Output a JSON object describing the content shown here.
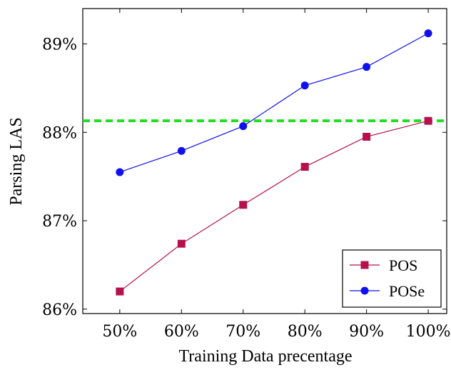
{
  "chart_data": {
    "type": "line",
    "xlabel": "Training Data precentage",
    "ylabel": "Parsing LAS",
    "x": [
      50,
      60,
      70,
      80,
      90,
      100
    ],
    "x_tick_labels": [
      "50%",
      "60%",
      "70%",
      "80%",
      "90%",
      "100%"
    ],
    "ylim": [
      85.95,
      89.4
    ],
    "xlim": [
      44,
      103
    ],
    "y_ticks": [
      86,
      87,
      88,
      89
    ],
    "y_tick_labels": [
      "86%",
      "87%",
      "88%",
      "89%"
    ],
    "grid": false,
    "legend_position": "bottom-right",
    "series": [
      {
        "name": "POS",
        "values": [
          86.2,
          86.74,
          87.18,
          87.61,
          87.95,
          88.13
        ],
        "color": "#b5124d",
        "marker": "square"
      },
      {
        "name": "POSe",
        "values": [
          87.55,
          87.79,
          88.07,
          88.53,
          88.74,
          89.12
        ],
        "color": "#1010ee",
        "marker": "circle"
      }
    ],
    "reference_line": {
      "y": 88.13,
      "color": "#22dd22",
      "style": "dashed"
    }
  }
}
